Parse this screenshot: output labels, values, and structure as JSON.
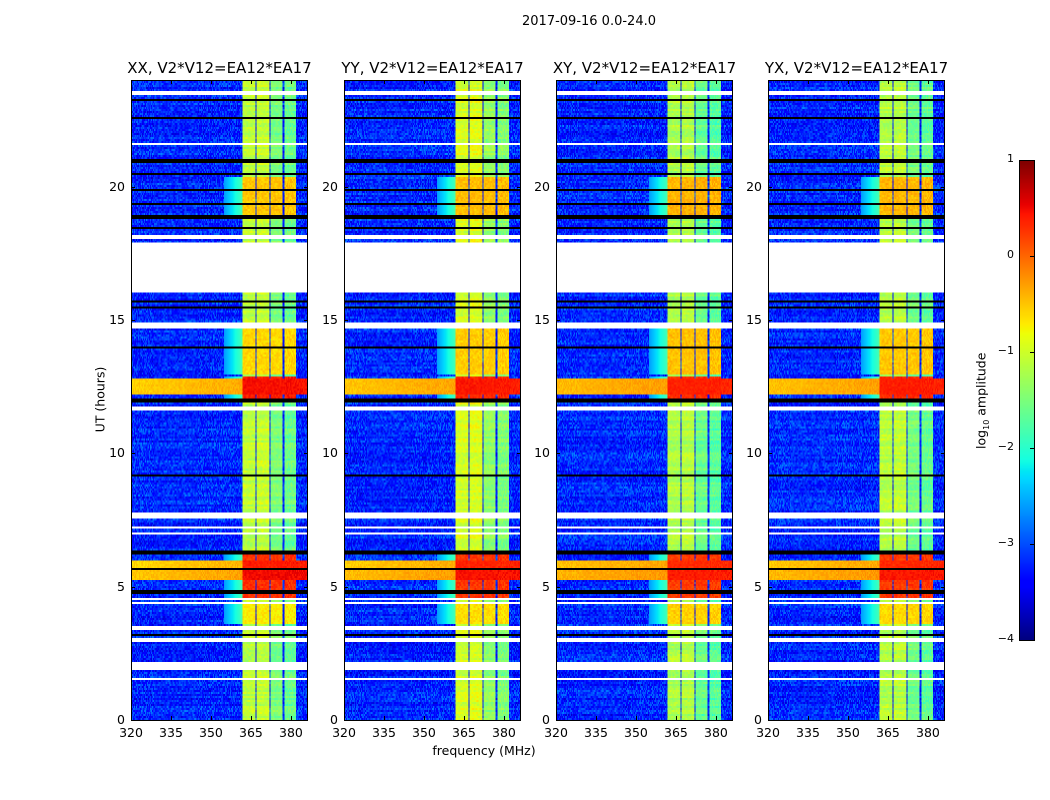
{
  "suptitle": "2017-09-16 0.0-24.0",
  "chart_data": {
    "type": "heatmap",
    "title": "2017-09-16 0.0-24.0",
    "xlabel": "frequency (MHz)",
    "ylabel": "UT (hours)",
    "xlim": [
      320,
      386.4
    ],
    "ylim": [
      0,
      24
    ],
    "xticks": [
      320,
      335,
      350,
      365,
      380
    ],
    "yticks": [
      0,
      5,
      10,
      15,
      20
    ],
    "panels": [
      {
        "title": "XX, V2*V12=EA12*EA17",
        "band_offset": 0.0,
        "rfi_strength": 1.0
      },
      {
        "title": "YY, V2*V12=EA12*EA17",
        "band_offset": 0.15,
        "rfi_strength": 0.9
      },
      {
        "title": "XY, V2*V12=EA12*EA17",
        "band_offset": -0.1,
        "rfi_strength": 0.8
      },
      {
        "title": "YX, V2*V12=EA12*EA17",
        "band_offset": -0.05,
        "rfi_strength": 0.85
      }
    ],
    "background_level": -3.2,
    "subbands_mhz": [
      [
        362.0,
        366.8
      ],
      [
        367.2,
        372.0
      ],
      [
        372.4,
        377.2
      ],
      [
        377.6,
        382.2
      ]
    ],
    "subband_levels": [
      -1.1,
      -1.05,
      -1.5,
      -1.6
    ],
    "enhanced_periods": [
      {
        "t0": 4.6,
        "t1": 6.4,
        "level": 0.3
      },
      {
        "t0": 12.1,
        "t1": 12.9,
        "level": 0.4
      },
      {
        "t0": 13.0,
        "t1": 14.7,
        "level": -0.6
      },
      {
        "t0": 19.0,
        "t1": 20.4,
        "level": -0.5
      },
      {
        "t0": 3.6,
        "t1": 4.4,
        "level": -0.7
      }
    ],
    "broadband_rfi": [
      {
        "t0": 5.25,
        "t1": 5.6,
        "level": 0.0
      },
      {
        "t0": 5.7,
        "t1": 6.0,
        "level": -0.1
      },
      {
        "t0": 12.25,
        "t1": 12.85,
        "level": -0.05
      }
    ],
    "flagged_hours": [
      [
        23.5,
        23.65
      ],
      [
        21.6,
        21.65
      ],
      [
        21.2,
        21.25
      ],
      [
        18.1,
        18.2
      ],
      [
        16.05,
        17.9
      ],
      [
        14.7,
        14.95
      ],
      [
        13.85,
        13.9
      ],
      [
        11.6,
        11.8
      ],
      [
        9.95,
        10.0
      ],
      [
        7.6,
        7.8
      ],
      [
        7.4,
        7.45
      ],
      [
        7.2,
        7.25
      ],
      [
        7.0,
        7.05
      ],
      [
        4.5,
        4.55
      ],
      [
        4.35,
        4.4
      ],
      [
        3.4,
        3.5
      ],
      [
        2.95,
        3.05
      ],
      [
        1.9,
        2.15
      ],
      [
        1.5,
        1.55
      ],
      [
        1.25,
        1.3
      ],
      [
        0.5,
        0.55
      ]
    ],
    "dark_lines_hours": [
      23.3,
      22.6,
      21.0,
      20.5,
      19.9,
      19.4,
      18.9,
      18.5,
      15.7,
      15.5,
      14.0,
      12.0,
      11.95,
      9.2,
      6.3,
      5.65,
      4.8,
      3.2
    ],
    "colorbar": {
      "label": "log10 amplitude",
      "label_main": "log",
      "label_sub": "10",
      "label_rest": " amplitude",
      "range": [
        -4,
        1
      ],
      "ticks": [
        "1",
        "0",
        "−1",
        "−2",
        "−3",
        "−4"
      ],
      "colormap": "jet"
    }
  }
}
